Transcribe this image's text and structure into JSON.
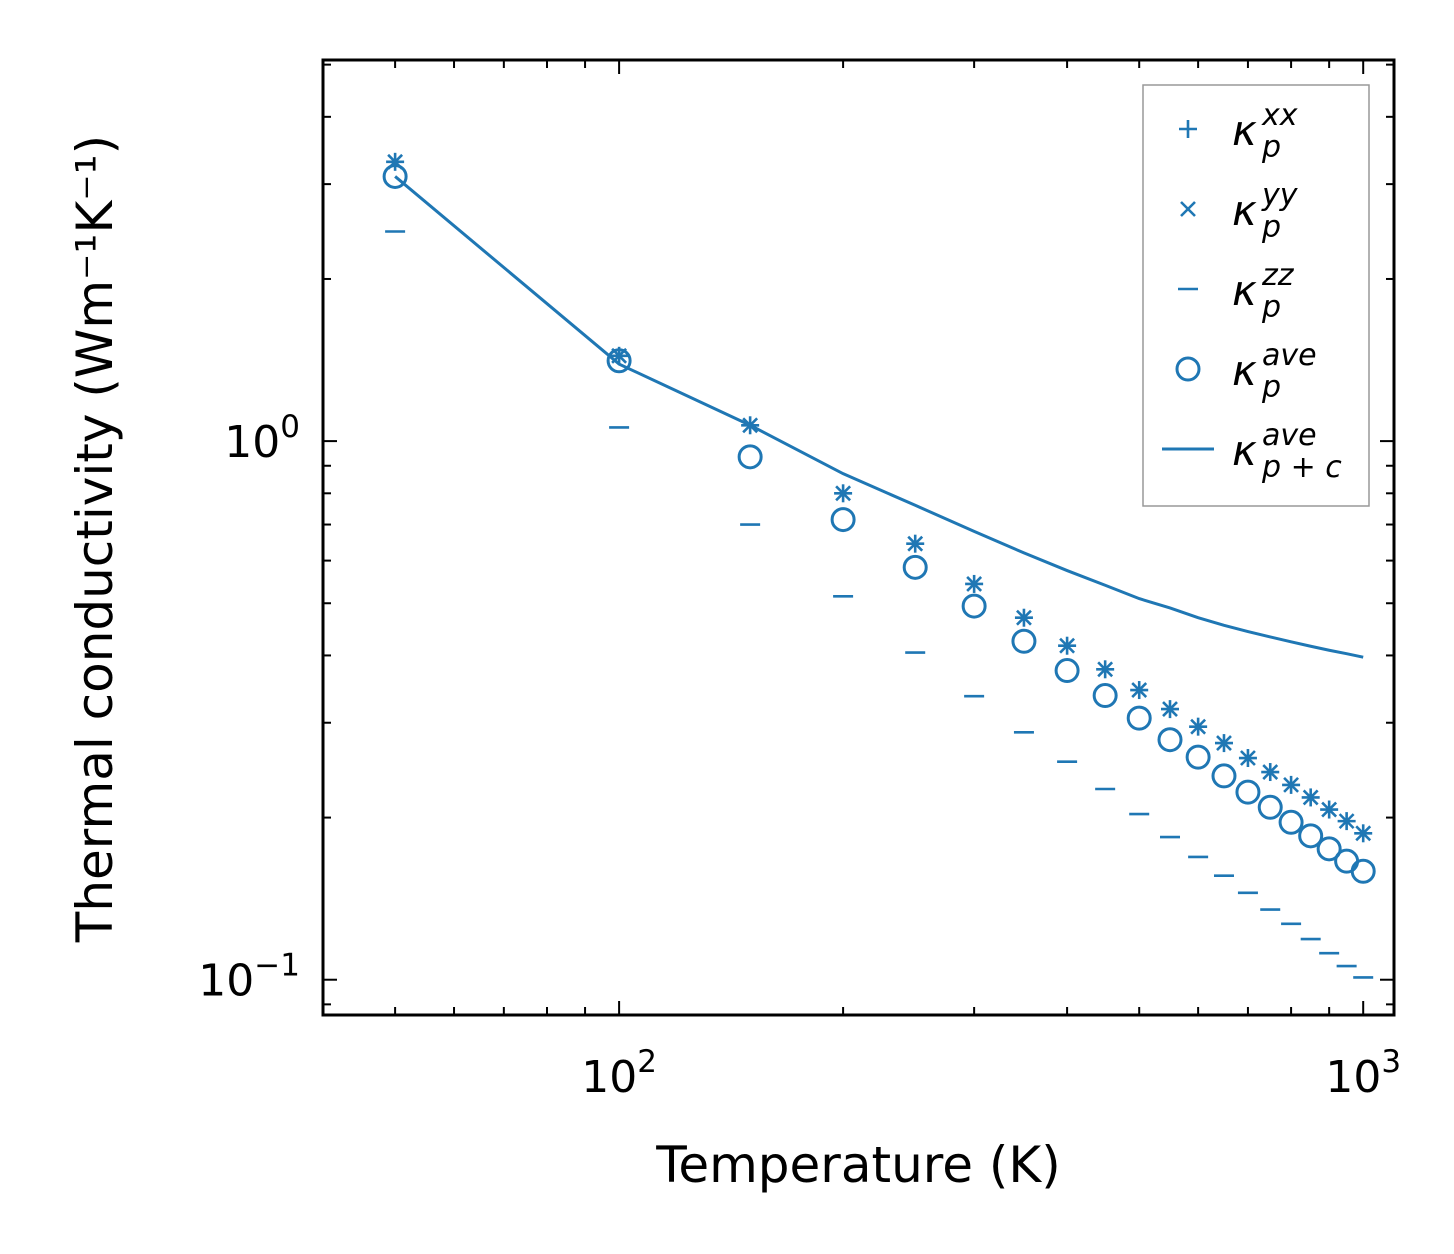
{
  "chart_data": {
    "type": "scatter",
    "xscale": "log",
    "yscale": "log",
    "xlabel": "Temperature (K)",
    "ylabel": "Thermal conductivity (Wm⁻¹K⁻¹)",
    "xlim": [
      40,
      1100
    ],
    "ylim": [
      0.086,
      5.1
    ],
    "x_ticks": [
      {
        "value": 100,
        "base": "10",
        "exp": "2"
      },
      {
        "value": 1000,
        "base": "10",
        "exp": "3"
      }
    ],
    "y_ticks": [
      {
        "value": 0.1,
        "base": "10",
        "exp": "−1"
      },
      {
        "value": 1,
        "base": "10",
        "exp": "0"
      }
    ],
    "x": [
      50,
      100,
      150,
      200,
      250,
      300,
      350,
      400,
      450,
      500,
      550,
      600,
      650,
      700,
      750,
      800,
      850,
      900,
      950,
      1000
    ],
    "series": [
      {
        "name": "kappa_p_xx",
        "symbol": "κ",
        "sub": "p",
        "sup": "xx",
        "marker": "plus",
        "values": [
          3.3,
          1.44,
          1.07,
          0.8,
          0.645,
          0.543,
          0.47,
          0.417,
          0.377,
          0.345,
          0.318,
          0.295,
          0.275,
          0.258,
          0.243,
          0.23,
          0.218,
          0.207,
          0.197,
          0.187
        ]
      },
      {
        "name": "kappa_p_yy",
        "symbol": "κ",
        "sub": "p",
        "sup": "yy",
        "marker": "x",
        "values": [
          3.3,
          1.44,
          1.07,
          0.8,
          0.645,
          0.543,
          0.47,
          0.417,
          0.377,
          0.345,
          0.318,
          0.295,
          0.275,
          0.258,
          0.243,
          0.23,
          0.218,
          0.207,
          0.197,
          0.187
        ]
      },
      {
        "name": "kappa_p_zz",
        "symbol": "κ",
        "sub": "p",
        "sup": "zz",
        "marker": "hline",
        "values": [
          2.45,
          1.06,
          0.7,
          0.515,
          0.405,
          0.336,
          0.288,
          0.254,
          0.226,
          0.203,
          0.184,
          0.169,
          0.156,
          0.145,
          0.135,
          0.127,
          0.119,
          0.112,
          0.106,
          0.101
        ]
      },
      {
        "name": "kappa_p_ave",
        "symbol": "κ",
        "sub": "p",
        "sup": "ave",
        "marker": "circle",
        "values": [
          3.1,
          1.41,
          0.935,
          0.715,
          0.583,
          0.494,
          0.425,
          0.375,
          0.337,
          0.306,
          0.279,
          0.259,
          0.239,
          0.223,
          0.209,
          0.196,
          0.185,
          0.175,
          0.166,
          0.159
        ]
      },
      {
        "name": "kappa_pc_ave",
        "symbol": "κ",
        "sub": "p + c",
        "sup": "ave",
        "marker": "line",
        "values": [
          3.1,
          1.39,
          1.07,
          0.87,
          0.76,
          0.68,
          0.62,
          0.575,
          0.54,
          0.51,
          0.49,
          0.47,
          0.455,
          0.443,
          0.433,
          0.424,
          0.416,
          0.409,
          0.403,
          0.397
        ]
      }
    ],
    "legend": {
      "placement": "top-right"
    },
    "colors": {
      "series": "#1f77b4",
      "axes": "#000000",
      "legend_border": "#999999"
    },
    "grid": false
  }
}
